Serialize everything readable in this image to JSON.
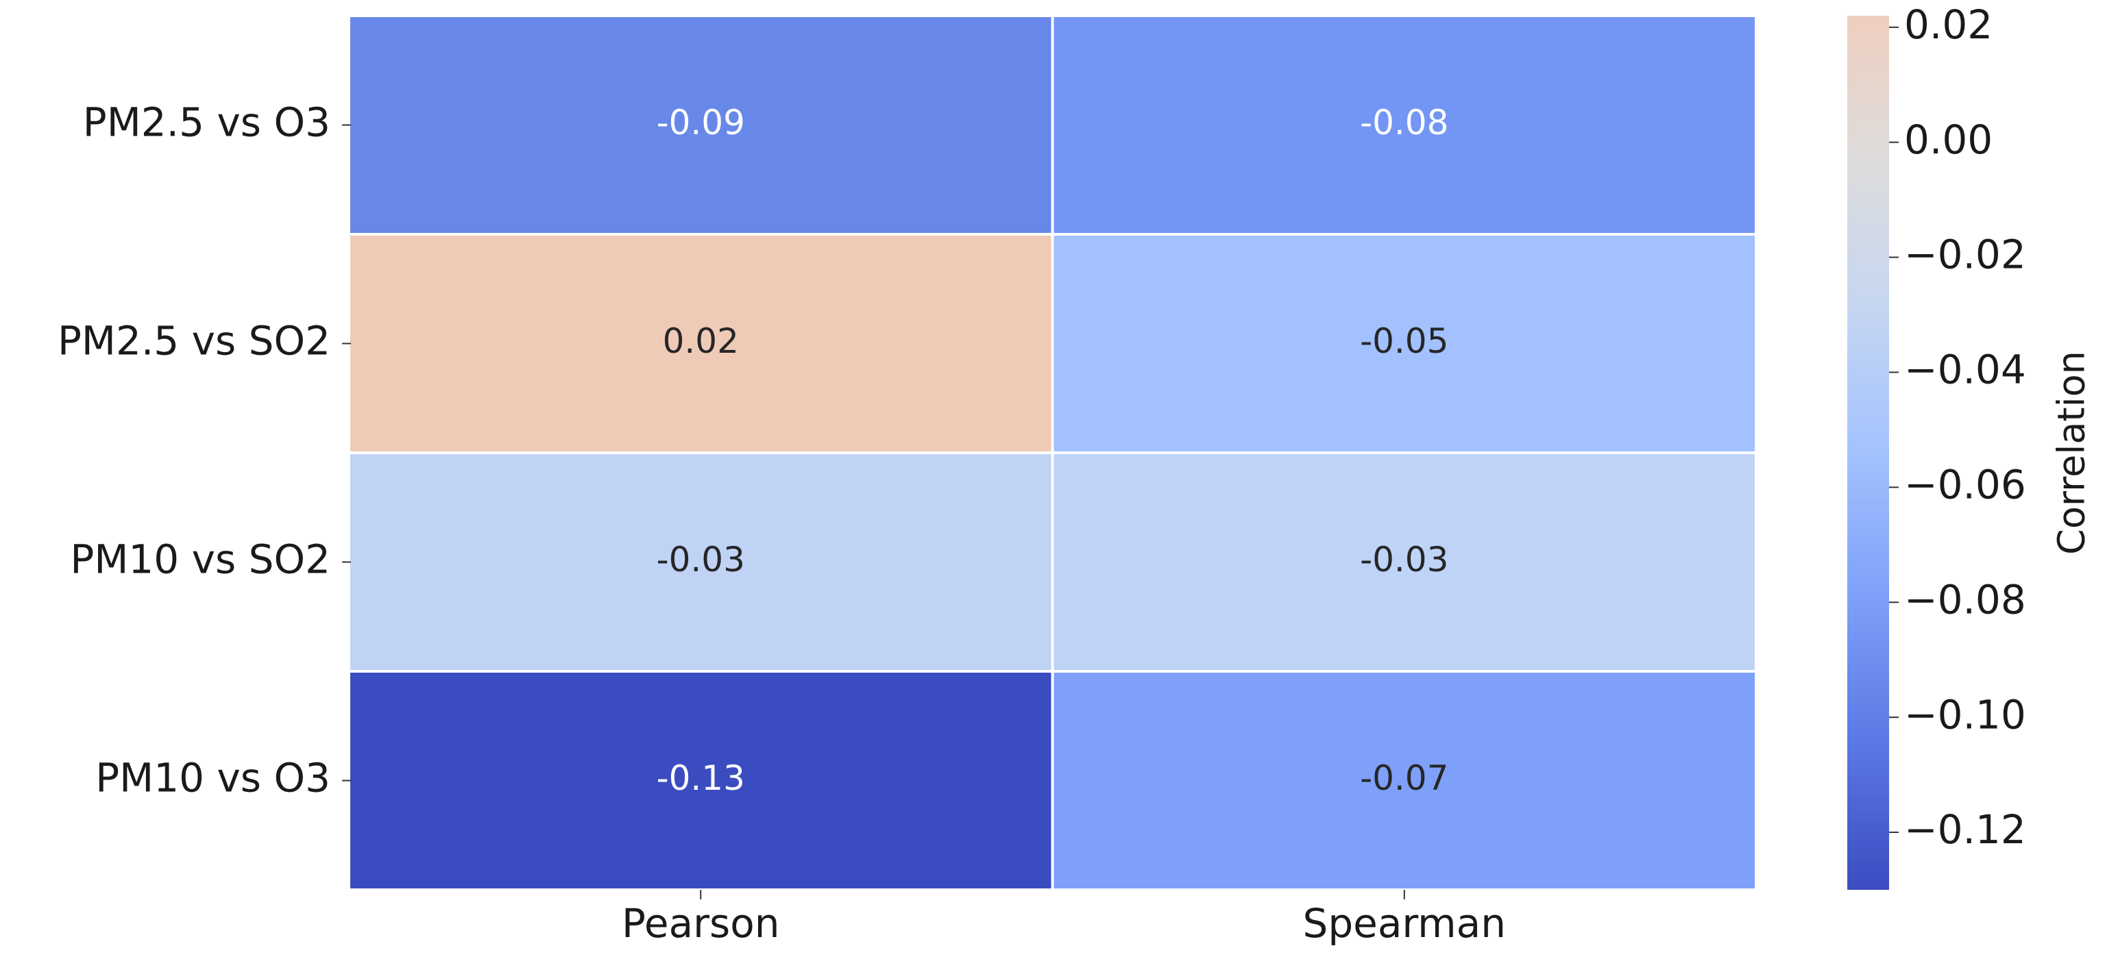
{
  "chart_data": {
    "type": "heatmap",
    "rows": [
      "PM2.5 vs O3",
      "PM2.5 vs SO2",
      "PM10 vs SO2",
      "PM10 vs O3"
    ],
    "columns": [
      "Pearson",
      "Spearman"
    ],
    "values": [
      [
        -0.09,
        -0.08
      ],
      [
        0.02,
        -0.05
      ],
      [
        -0.03,
        -0.03
      ],
      [
        -0.13,
        -0.07
      ]
    ],
    "colors": [
      [
        "#6788e8",
        "#7396f5"
      ],
      [
        "#efcbb7",
        "#a2c1fe"
      ],
      [
        "#c0d3f5",
        "#bfd3f6"
      ],
      [
        "#3b4cc0",
        "#7ea0f9"
      ]
    ],
    "colorbar": {
      "label": "Correlation",
      "lim": [
        -0.13,
        0.022
      ],
      "ticks": [
        0.02,
        {
          "value": 0,
          "label": "0.00"
        },
        {
          "value": -0.02,
          "label": "−0.02"
        },
        {
          "value": -0.04,
          "label": "−0.04"
        },
        {
          "value": -0.06,
          "label": "−0.06"
        },
        {
          "value": -0.08,
          "label": "−0.08"
        },
        {
          "value": -0.1,
          "label": "−0.10"
        },
        {
          "value": -0.12,
          "label": "−0.12"
        }
      ],
      "colors": [
        "#3b4cc0",
        "#5a78e4",
        "#7ea0f9",
        "#a3c2fe",
        "#c6d6f1",
        "#dddcdc",
        "#efcfbf"
      ]
    }
  }
}
